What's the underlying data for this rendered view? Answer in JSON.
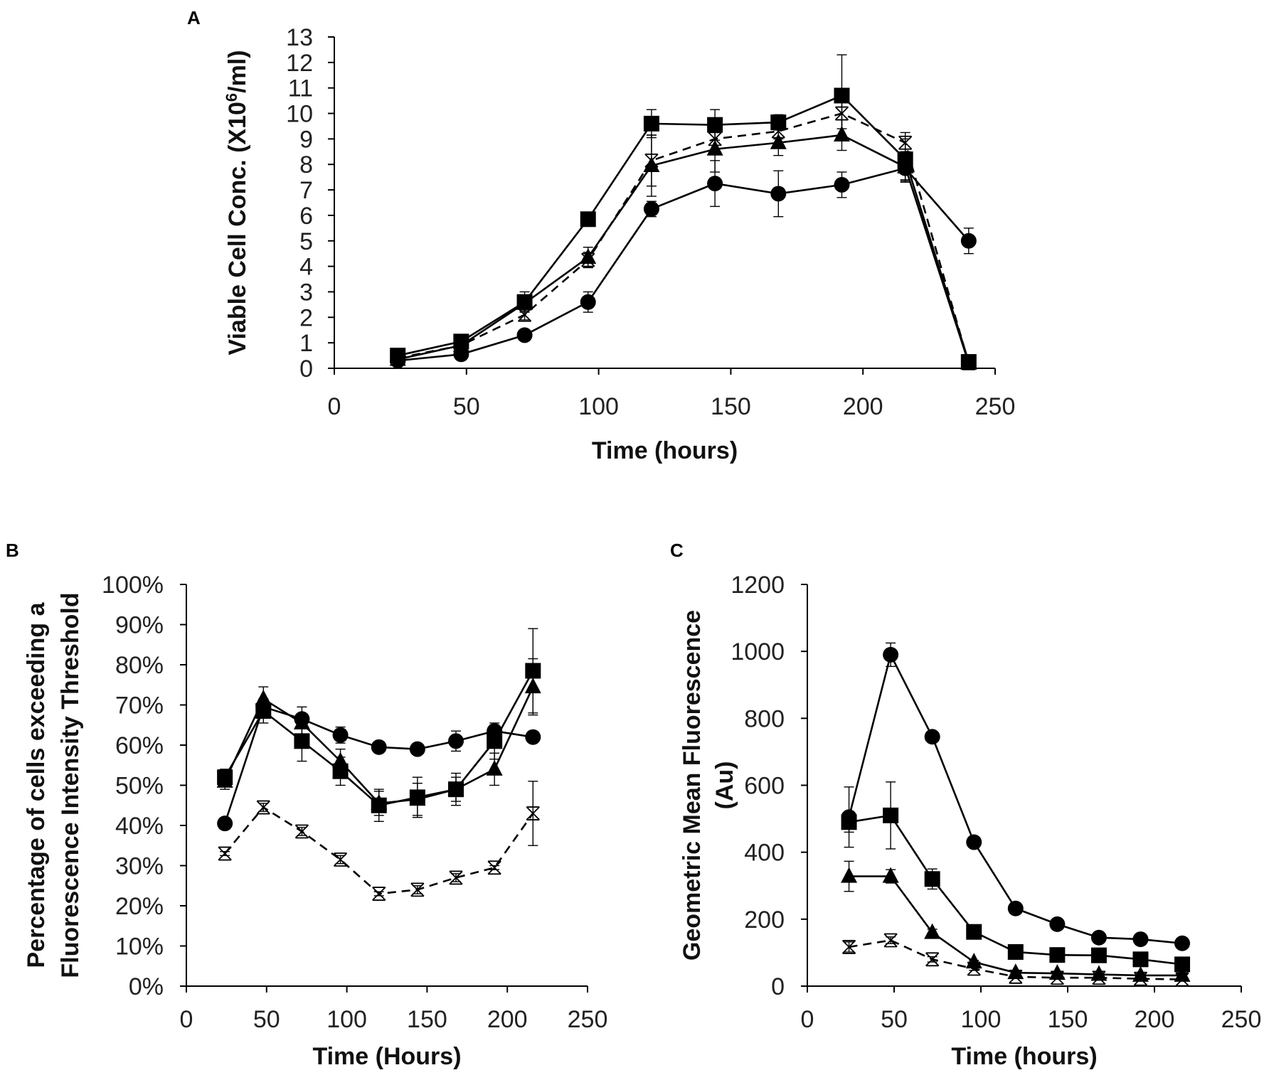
{
  "chart_data": [
    {
      "panel": "A",
      "type": "line",
      "title": "",
      "xlabel": "Time (hours)",
      "ylabel_prefix": "Viable Cell Conc. (X10",
      "ylabel_sup": "6",
      "ylabel_suffix": "/ml)",
      "xlim": [
        0,
        250
      ],
      "ylim": [
        0,
        13
      ],
      "x_ticks": [
        "0",
        "50",
        "100",
        "150",
        "200",
        "250"
      ],
      "y_ticks": [
        "0",
        "1",
        "2",
        "3",
        "4",
        "5",
        "6",
        "7",
        "8",
        "9",
        "10",
        "11",
        "12",
        "13"
      ],
      "x": [
        24,
        48,
        72,
        96,
        120,
        144,
        168,
        192,
        216,
        240
      ],
      "series": [
        {
          "name": "circle",
          "marker": "circle",
          "dash": false,
          "values": [
            0.3,
            0.55,
            1.3,
            2.6,
            6.25,
            7.25,
            6.85,
            7.2,
            7.85,
            5.0
          ],
          "errors": [
            0.1,
            0.1,
            0.15,
            0.4,
            0.3,
            0.9,
            0.9,
            0.5,
            0.5,
            0.5
          ]
        },
        {
          "name": "square",
          "marker": "square",
          "dash": false,
          "values": [
            0.5,
            1.05,
            2.6,
            5.85,
            9.6,
            9.55,
            9.65,
            10.7,
            8.2,
            0.25
          ],
          "errors": [
            0.1,
            0.15,
            0.4,
            0.2,
            0.55,
            0.6,
            0.3,
            1.6,
            0.8,
            0.1
          ]
        },
        {
          "name": "triangle",
          "marker": "triangle",
          "dash": false,
          "values": [
            0.35,
            0.9,
            2.55,
            4.35,
            7.95,
            8.6,
            8.85,
            9.15,
            7.9,
            0.2
          ],
          "errors": [
            0.1,
            0.15,
            0.3,
            0.4,
            1.2,
            0.9,
            0.5,
            0.6,
            0.6,
            0.1
          ]
        },
        {
          "name": "cross",
          "marker": "x",
          "dash": true,
          "values": [
            0.4,
            0.9,
            2.1,
            4.25,
            8.15,
            9.0,
            9.3,
            10.0,
            8.85,
            0.2
          ],
          "errors": [
            0.1,
            0.1,
            0.2,
            0.3,
            1.0,
            0.5,
            0.3,
            0.6,
            0.4,
            0.1
          ]
        }
      ]
    },
    {
      "panel": "B",
      "type": "line",
      "title": "",
      "xlabel": "Time (Hours)",
      "ylabel_line1": "Percentage of cells exceeding a",
      "ylabel_line2": "Fluorescence Intensity Threshold",
      "xlim": [
        0,
        250
      ],
      "ylim": [
        0,
        100
      ],
      "x_ticks": [
        "0",
        "50",
        "100",
        "150",
        "200",
        "250"
      ],
      "y_ticks": [
        "0%",
        "10%",
        "20%",
        "30%",
        "40%",
        "50%",
        "60%",
        "70%",
        "80%",
        "90%",
        "100%"
      ],
      "x": [
        24,
        48,
        72,
        96,
        120,
        144,
        168,
        192,
        216
      ],
      "series": [
        {
          "name": "circle",
          "marker": "circle",
          "dash": false,
          "values": [
            40.5,
            69.5,
            66.5,
            62.5,
            59.5,
            59.0,
            61.0,
            63.5,
            62.0
          ],
          "errors": [
            0,
            1.0,
            1.0,
            2.0,
            0,
            0,
            2.5,
            1.5,
            0
          ]
        },
        {
          "name": "square",
          "marker": "square",
          "dash": false,
          "values": [
            52.0,
            68.5,
            61.0,
            53.5,
            45.0,
            47.0,
            49.0,
            61.0,
            78.5
          ],
          "errors": [
            2.0,
            3.0,
            5.0,
            3.5,
            4.0,
            5.0,
            4.0,
            4.5,
            10.5
          ]
        },
        {
          "name": "triangle",
          "marker": "triangle",
          "dash": false,
          "values": [
            51.0,
            71.5,
            65.5,
            56.0,
            45.5,
            46.5,
            49.0,
            54.0,
            74.5
          ],
          "errors": [
            2.0,
            3.0,
            4.0,
            3.0,
            3.0,
            4.0,
            3.0,
            4.0,
            7.0
          ]
        },
        {
          "name": "cross",
          "marker": "x",
          "dash": true,
          "values": [
            33.0,
            44.5,
            38.5,
            31.5,
            23.0,
            24.0,
            27.0,
            29.5,
            43.0
          ],
          "errors": [
            0.5,
            1.0,
            1.0,
            1.0,
            0.5,
            1.0,
            1.0,
            0.5,
            8.0
          ]
        }
      ]
    },
    {
      "panel": "C",
      "type": "line",
      "title": "",
      "xlabel": "Time (hours)",
      "ylabel_line1": "Geometric Mean Fluorescence",
      "ylabel_line2": "(Au)",
      "xlim": [
        0,
        250
      ],
      "ylim": [
        0,
        1200
      ],
      "x_ticks": [
        "0",
        "50",
        "100",
        "150",
        "200",
        "250"
      ],
      "y_ticks": [
        "0",
        "200",
        "400",
        "600",
        "800",
        "1000",
        "1200"
      ],
      "x": [
        24,
        48,
        72,
        96,
        120,
        144,
        168,
        192,
        216
      ],
      "series": [
        {
          "name": "circle",
          "marker": "circle",
          "dash": false,
          "values": [
            505,
            990,
            745,
            430,
            232,
            185,
            145,
            140,
            128
          ],
          "errors": [
            90,
            35,
            15,
            10,
            10,
            10,
            10,
            10,
            8
          ]
        },
        {
          "name": "square",
          "marker": "square",
          "dash": false,
          "values": [
            490,
            510,
            320,
            162,
            102,
            93,
            92,
            80,
            65
          ],
          "errors": [
            30,
            100,
            30,
            15,
            10,
            10,
            10,
            8,
            8
          ]
        },
        {
          "name": "triangle",
          "marker": "triangle",
          "dash": false,
          "values": [
            328,
            328,
            160,
            72,
            40,
            38,
            35,
            32,
            32
          ],
          "errors": [
            45,
            20,
            10,
            5,
            5,
            5,
            5,
            5,
            5
          ]
        },
        {
          "name": "cross",
          "marker": "x",
          "dash": true,
          "values": [
            117,
            137,
            80,
            52,
            28,
            25,
            25,
            22,
            20
          ],
          "errors": [
            15,
            10,
            8,
            5,
            4,
            4,
            4,
            4,
            4
          ]
        }
      ]
    }
  ]
}
